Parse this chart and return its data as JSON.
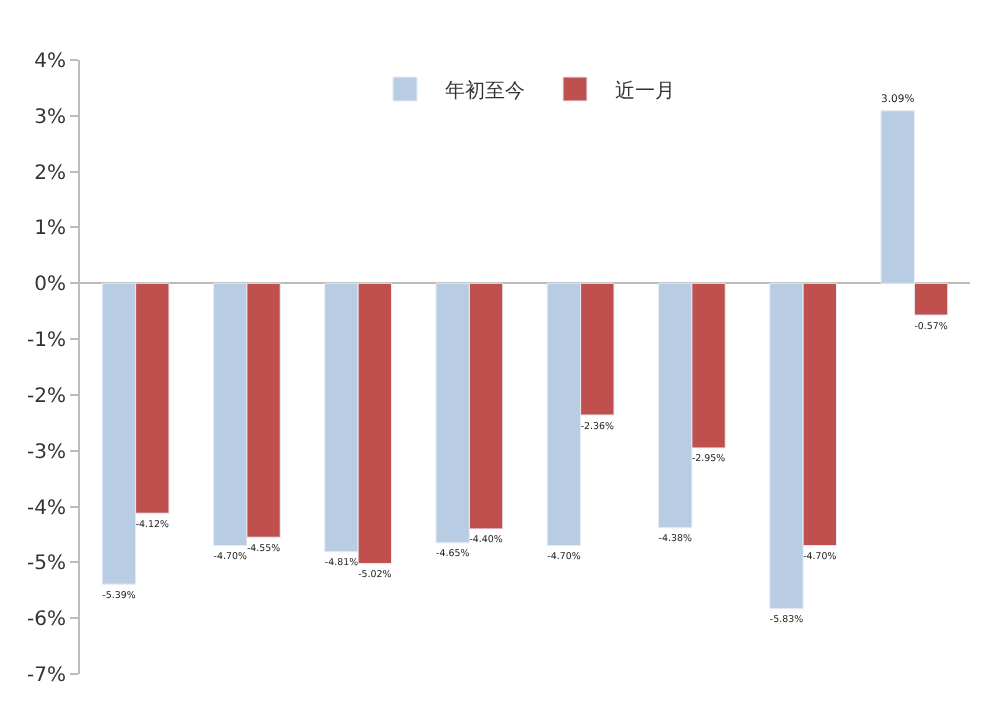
{
  "chart_data": {
    "type": "bar",
    "categories": [
      null,
      null,
      null,
      null,
      null,
      null,
      null,
      null
    ],
    "series": [
      {
        "name": "年初至今",
        "color": "#b8cce4",
        "values": [
          -5.39,
          -4.7,
          -4.81,
          -4.65,
          -4.7,
          -4.38,
          -5.83,
          3.09
        ],
        "value_labels": [
          "-5.39%",
          "-4.70%",
          "-4.81%",
          "-4.65%",
          "-4.70%",
          "-4.38%",
          "-5.83%",
          "3.09%"
        ]
      },
      {
        "name": "近一月",
        "color": "#c0504d",
        "values": [
          -4.12,
          -4.55,
          -5.02,
          -4.4,
          -2.36,
          -2.95,
          -4.7,
          -0.57
        ],
        "value_labels": [
          "-4.12%",
          "-4.55%",
          "-5.02%",
          "-4.40%",
          "-2.36%",
          "-2.95%",
          "-4.70%",
          "-0.57%"
        ]
      }
    ],
    "ylim": [
      -7,
      4
    ],
    "yticks": [
      {
        "value": -7,
        "label": "-7%"
      },
      {
        "value": -6,
        "label": "-6%"
      },
      {
        "value": -5,
        "label": "-5%"
      },
      {
        "value": -4,
        "label": "-4%"
      },
      {
        "value": -3,
        "label": "-3%"
      },
      {
        "value": -2,
        "label": "-2%"
      },
      {
        "value": -1,
        "label": "-1%"
      },
      {
        "value": 0,
        "label": "0%"
      },
      {
        "value": 1,
        "label": "1%"
      },
      {
        "value": 2,
        "label": "2%"
      },
      {
        "value": 3,
        "label": "3%"
      },
      {
        "value": 4,
        "label": "4%"
      }
    ],
    "tick_labels": "y",
    "legend": "top"
  }
}
